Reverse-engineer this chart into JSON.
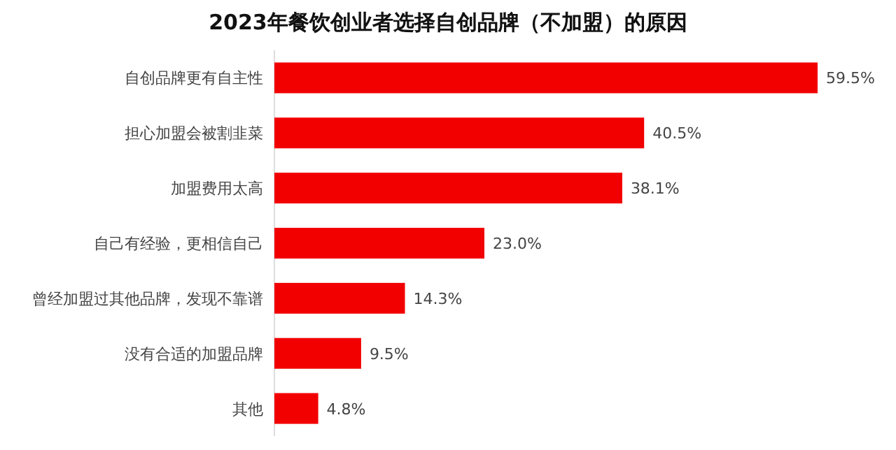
{
  "chart_data": {
    "type": "bar",
    "orientation": "horizontal",
    "title": "2023年餐饮创业者选择自创品牌（不加盟）的原因",
    "categories": [
      "自创品牌更有自主性",
      "担心加盟会被割韭菜",
      "加盟费用太高",
      "自己有经验，更相信自己",
      "曾经加盟过其他品牌，发现不靠谱",
      "没有合适的加盟品牌",
      "其他"
    ],
    "values": [
      59.5,
      40.5,
      38.1,
      23.0,
      14.3,
      9.5,
      4.8
    ],
    "value_labels": [
      "59.5%",
      "40.5%",
      "38.1%",
      "23.0%",
      "14.3%",
      "9.5%",
      "4.8%"
    ],
    "color": "#f20000"
  }
}
